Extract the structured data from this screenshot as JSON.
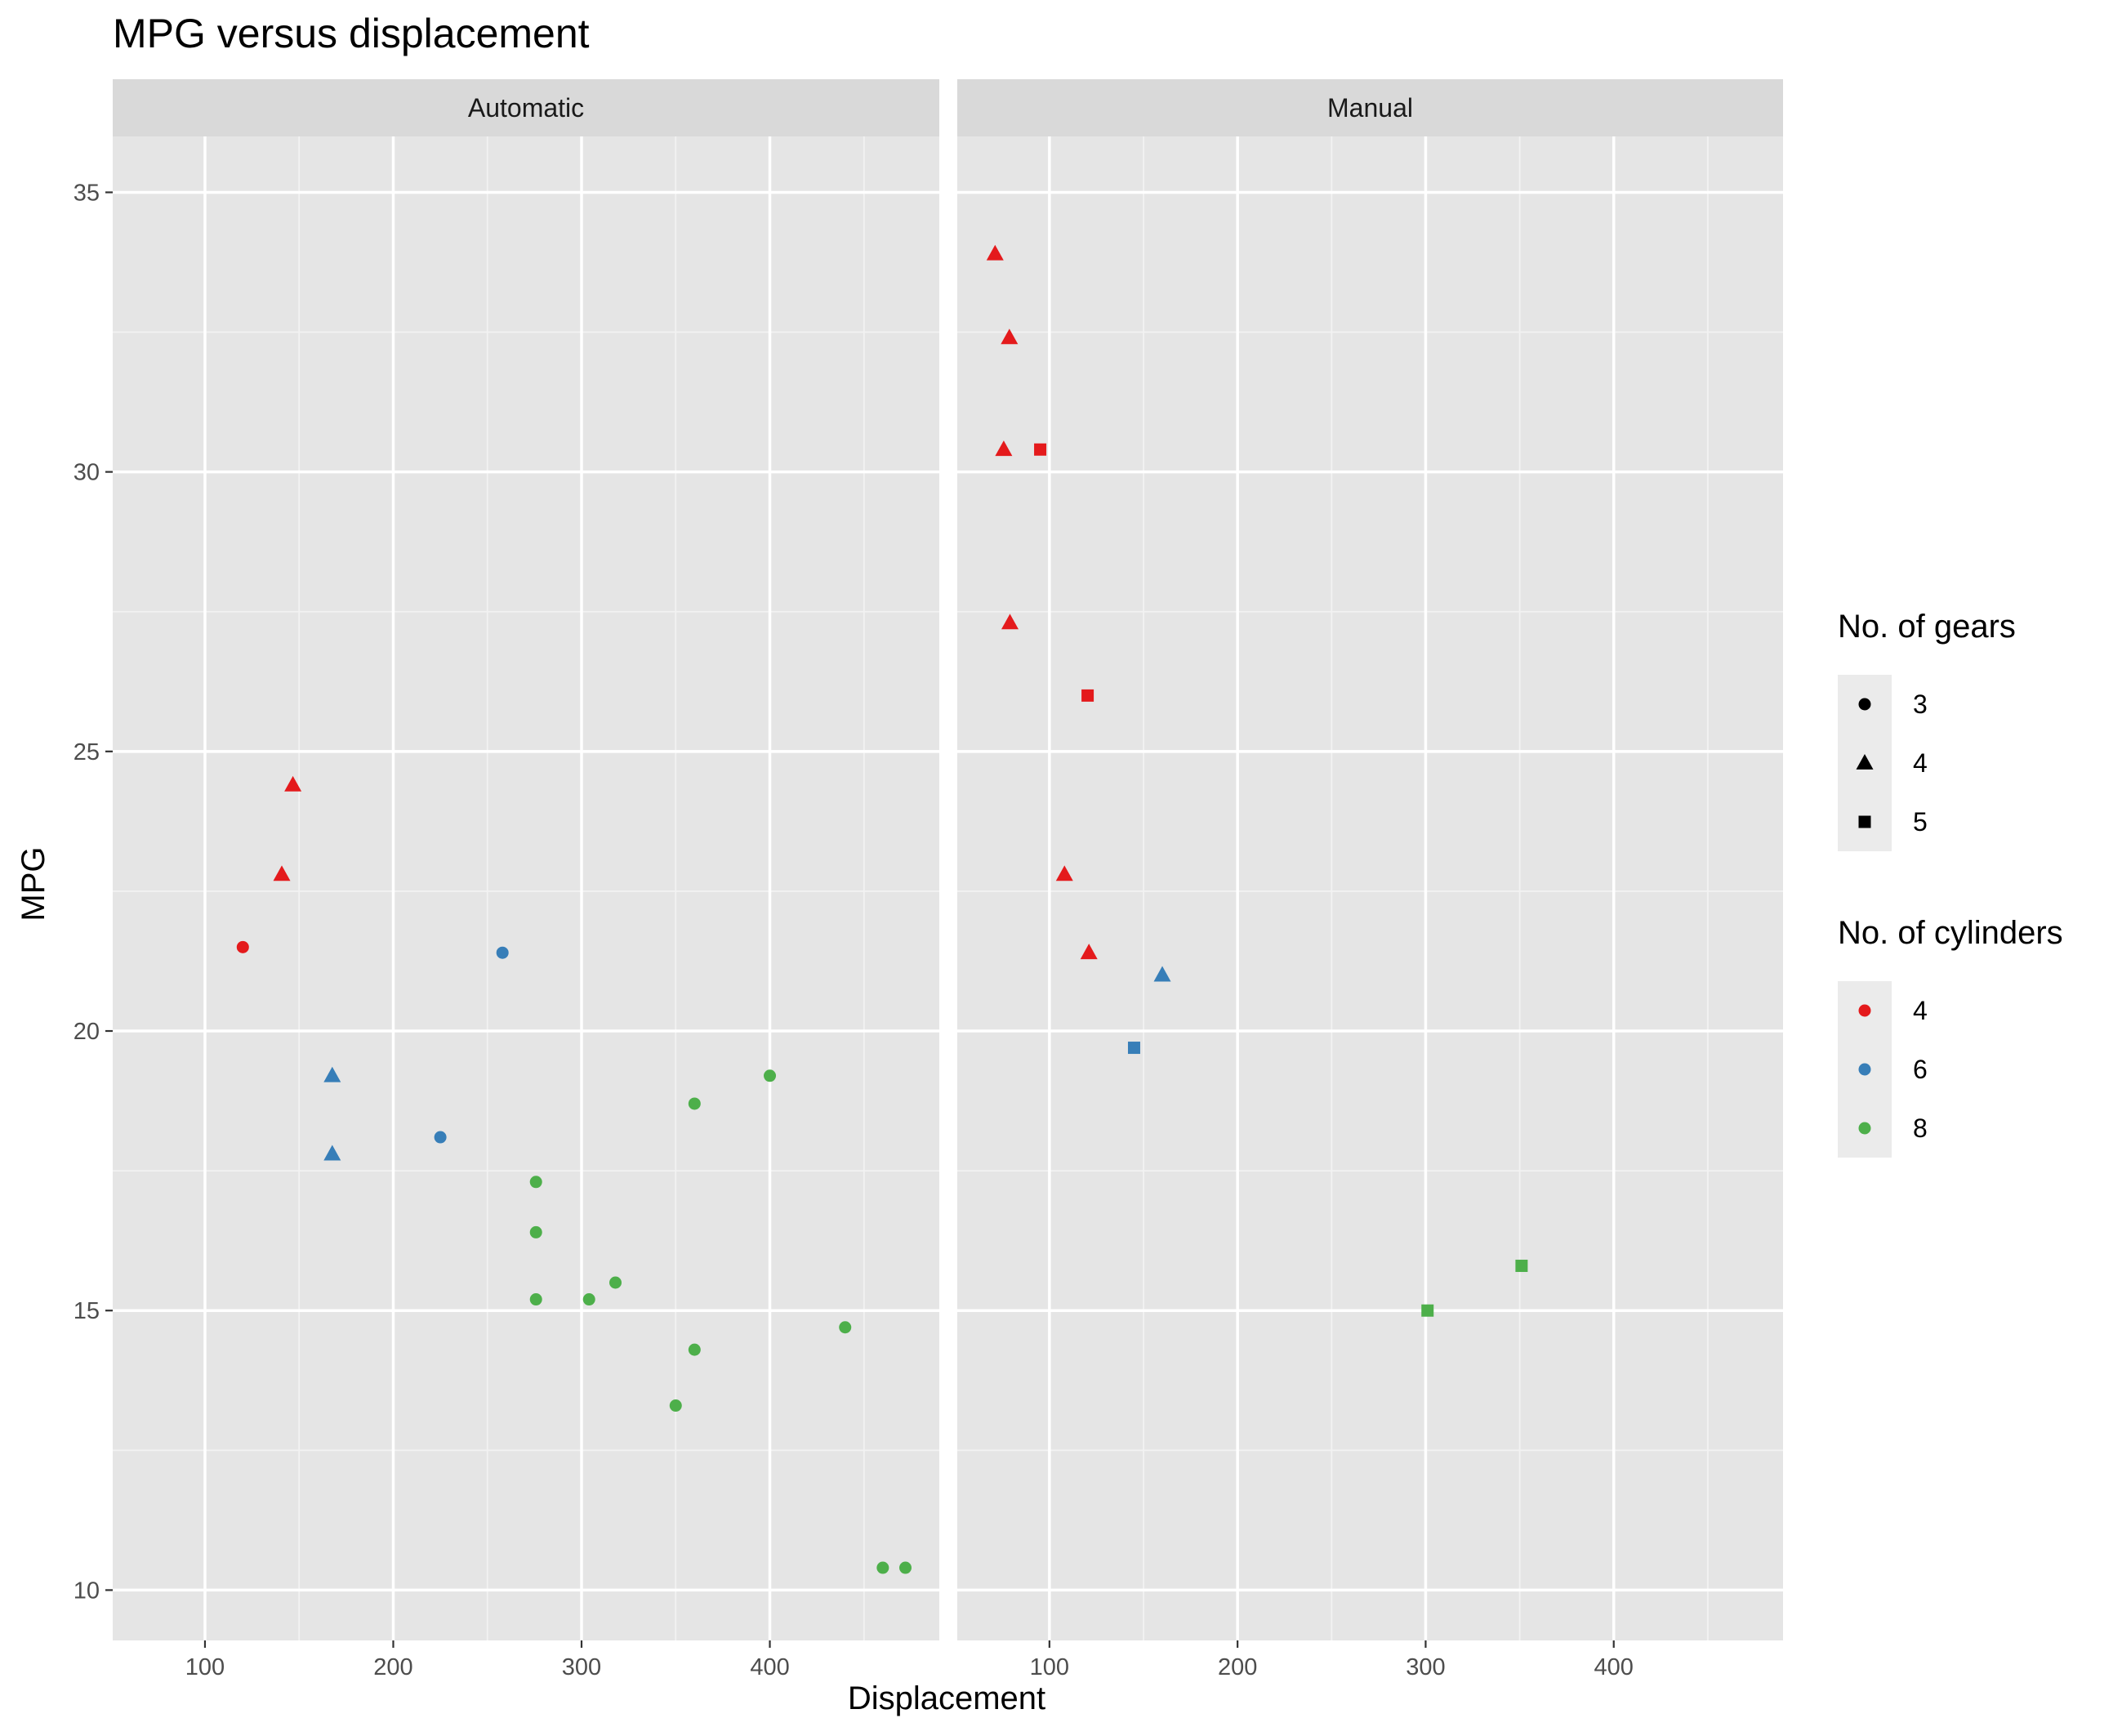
{
  "chart_data": {
    "type": "scatter",
    "title": "MPG versus displacement",
    "xlabel": "Displacement",
    "ylabel": "MPG",
    "xlim": [
      51,
      490
    ],
    "ylim": [
      9.1,
      36
    ],
    "x_ticks": [
      100,
      200,
      300,
      400
    ],
    "y_ticks": [
      10,
      15,
      20,
      25,
      30,
      35
    ],
    "grid": true,
    "legend_position": "right",
    "colors": {
      "4": "#e41a1c",
      "6": "#377eb8",
      "8": "#4daf4a"
    },
    "shapes": {
      "3": "circle",
      "4": "triangle",
      "5": "square"
    },
    "legends": [
      {
        "title": "No. of gears",
        "items": [
          {
            "label": "3",
            "shape": "circle"
          },
          {
            "label": "4",
            "shape": "triangle"
          },
          {
            "label": "5",
            "shape": "square"
          }
        ]
      },
      {
        "title": "No. of cylinders",
        "items": [
          {
            "label": "4",
            "color": "#e41a1c"
          },
          {
            "label": "6",
            "color": "#377eb8"
          },
          {
            "label": "8",
            "color": "#4daf4a"
          }
        ]
      }
    ],
    "panels": [
      {
        "label": "Automatic",
        "points": [
          {
            "x": 120.1,
            "y": 21.5,
            "gears": "3",
            "cyl": "4"
          },
          {
            "x": 146.7,
            "y": 24.4,
            "gears": "4",
            "cyl": "4"
          },
          {
            "x": 140.8,
            "y": 22.8,
            "gears": "4",
            "cyl": "4"
          },
          {
            "x": 258.0,
            "y": 21.4,
            "gears": "3",
            "cyl": "6"
          },
          {
            "x": 225.0,
            "y": 18.1,
            "gears": "3",
            "cyl": "6"
          },
          {
            "x": 167.6,
            "y": 19.2,
            "gears": "4",
            "cyl": "6"
          },
          {
            "x": 167.6,
            "y": 17.8,
            "gears": "4",
            "cyl": "6"
          },
          {
            "x": 360.0,
            "y": 18.7,
            "gears": "3",
            "cyl": "8"
          },
          {
            "x": 360.0,
            "y": 14.3,
            "gears": "3",
            "cyl": "8"
          },
          {
            "x": 275.8,
            "y": 16.4,
            "gears": "3",
            "cyl": "8"
          },
          {
            "x": 275.8,
            "y": 17.3,
            "gears": "3",
            "cyl": "8"
          },
          {
            "x": 275.8,
            "y": 15.2,
            "gears": "3",
            "cyl": "8"
          },
          {
            "x": 472.0,
            "y": 10.4,
            "gears": "3",
            "cyl": "8"
          },
          {
            "x": 460.0,
            "y": 10.4,
            "gears": "3",
            "cyl": "8"
          },
          {
            "x": 440.0,
            "y": 14.7,
            "gears": "3",
            "cyl": "8"
          },
          {
            "x": 318.0,
            "y": 15.5,
            "gears": "3",
            "cyl": "8"
          },
          {
            "x": 304.0,
            "y": 15.2,
            "gears": "3",
            "cyl": "8"
          },
          {
            "x": 350.0,
            "y": 13.3,
            "gears": "3",
            "cyl": "8"
          },
          {
            "x": 400.0,
            "y": 19.2,
            "gears": "3",
            "cyl": "8"
          }
        ]
      },
      {
        "label": "Manual",
        "points": [
          {
            "x": 108.0,
            "y": 22.8,
            "gears": "4",
            "cyl": "4"
          },
          {
            "x": 78.7,
            "y": 32.4,
            "gears": "4",
            "cyl": "4"
          },
          {
            "x": 75.7,
            "y": 30.4,
            "gears": "4",
            "cyl": "4"
          },
          {
            "x": 71.1,
            "y": 33.9,
            "gears": "4",
            "cyl": "4"
          },
          {
            "x": 79.0,
            "y": 27.3,
            "gears": "4",
            "cyl": "4"
          },
          {
            "x": 120.3,
            "y": 26.0,
            "gears": "5",
            "cyl": "4"
          },
          {
            "x": 95.1,
            "y": 30.4,
            "gears": "5",
            "cyl": "4"
          },
          {
            "x": 121.0,
            "y": 21.4,
            "gears": "4",
            "cyl": "4"
          },
          {
            "x": 160.0,
            "y": 21.0,
            "gears": "4",
            "cyl": "6"
          },
          {
            "x": 145.0,
            "y": 19.7,
            "gears": "5",
            "cyl": "6"
          },
          {
            "x": 351.0,
            "y": 15.8,
            "gears": "5",
            "cyl": "8"
          },
          {
            "x": 301.0,
            "y": 15.0,
            "gears": "5",
            "cyl": "8"
          }
        ]
      }
    ]
  }
}
